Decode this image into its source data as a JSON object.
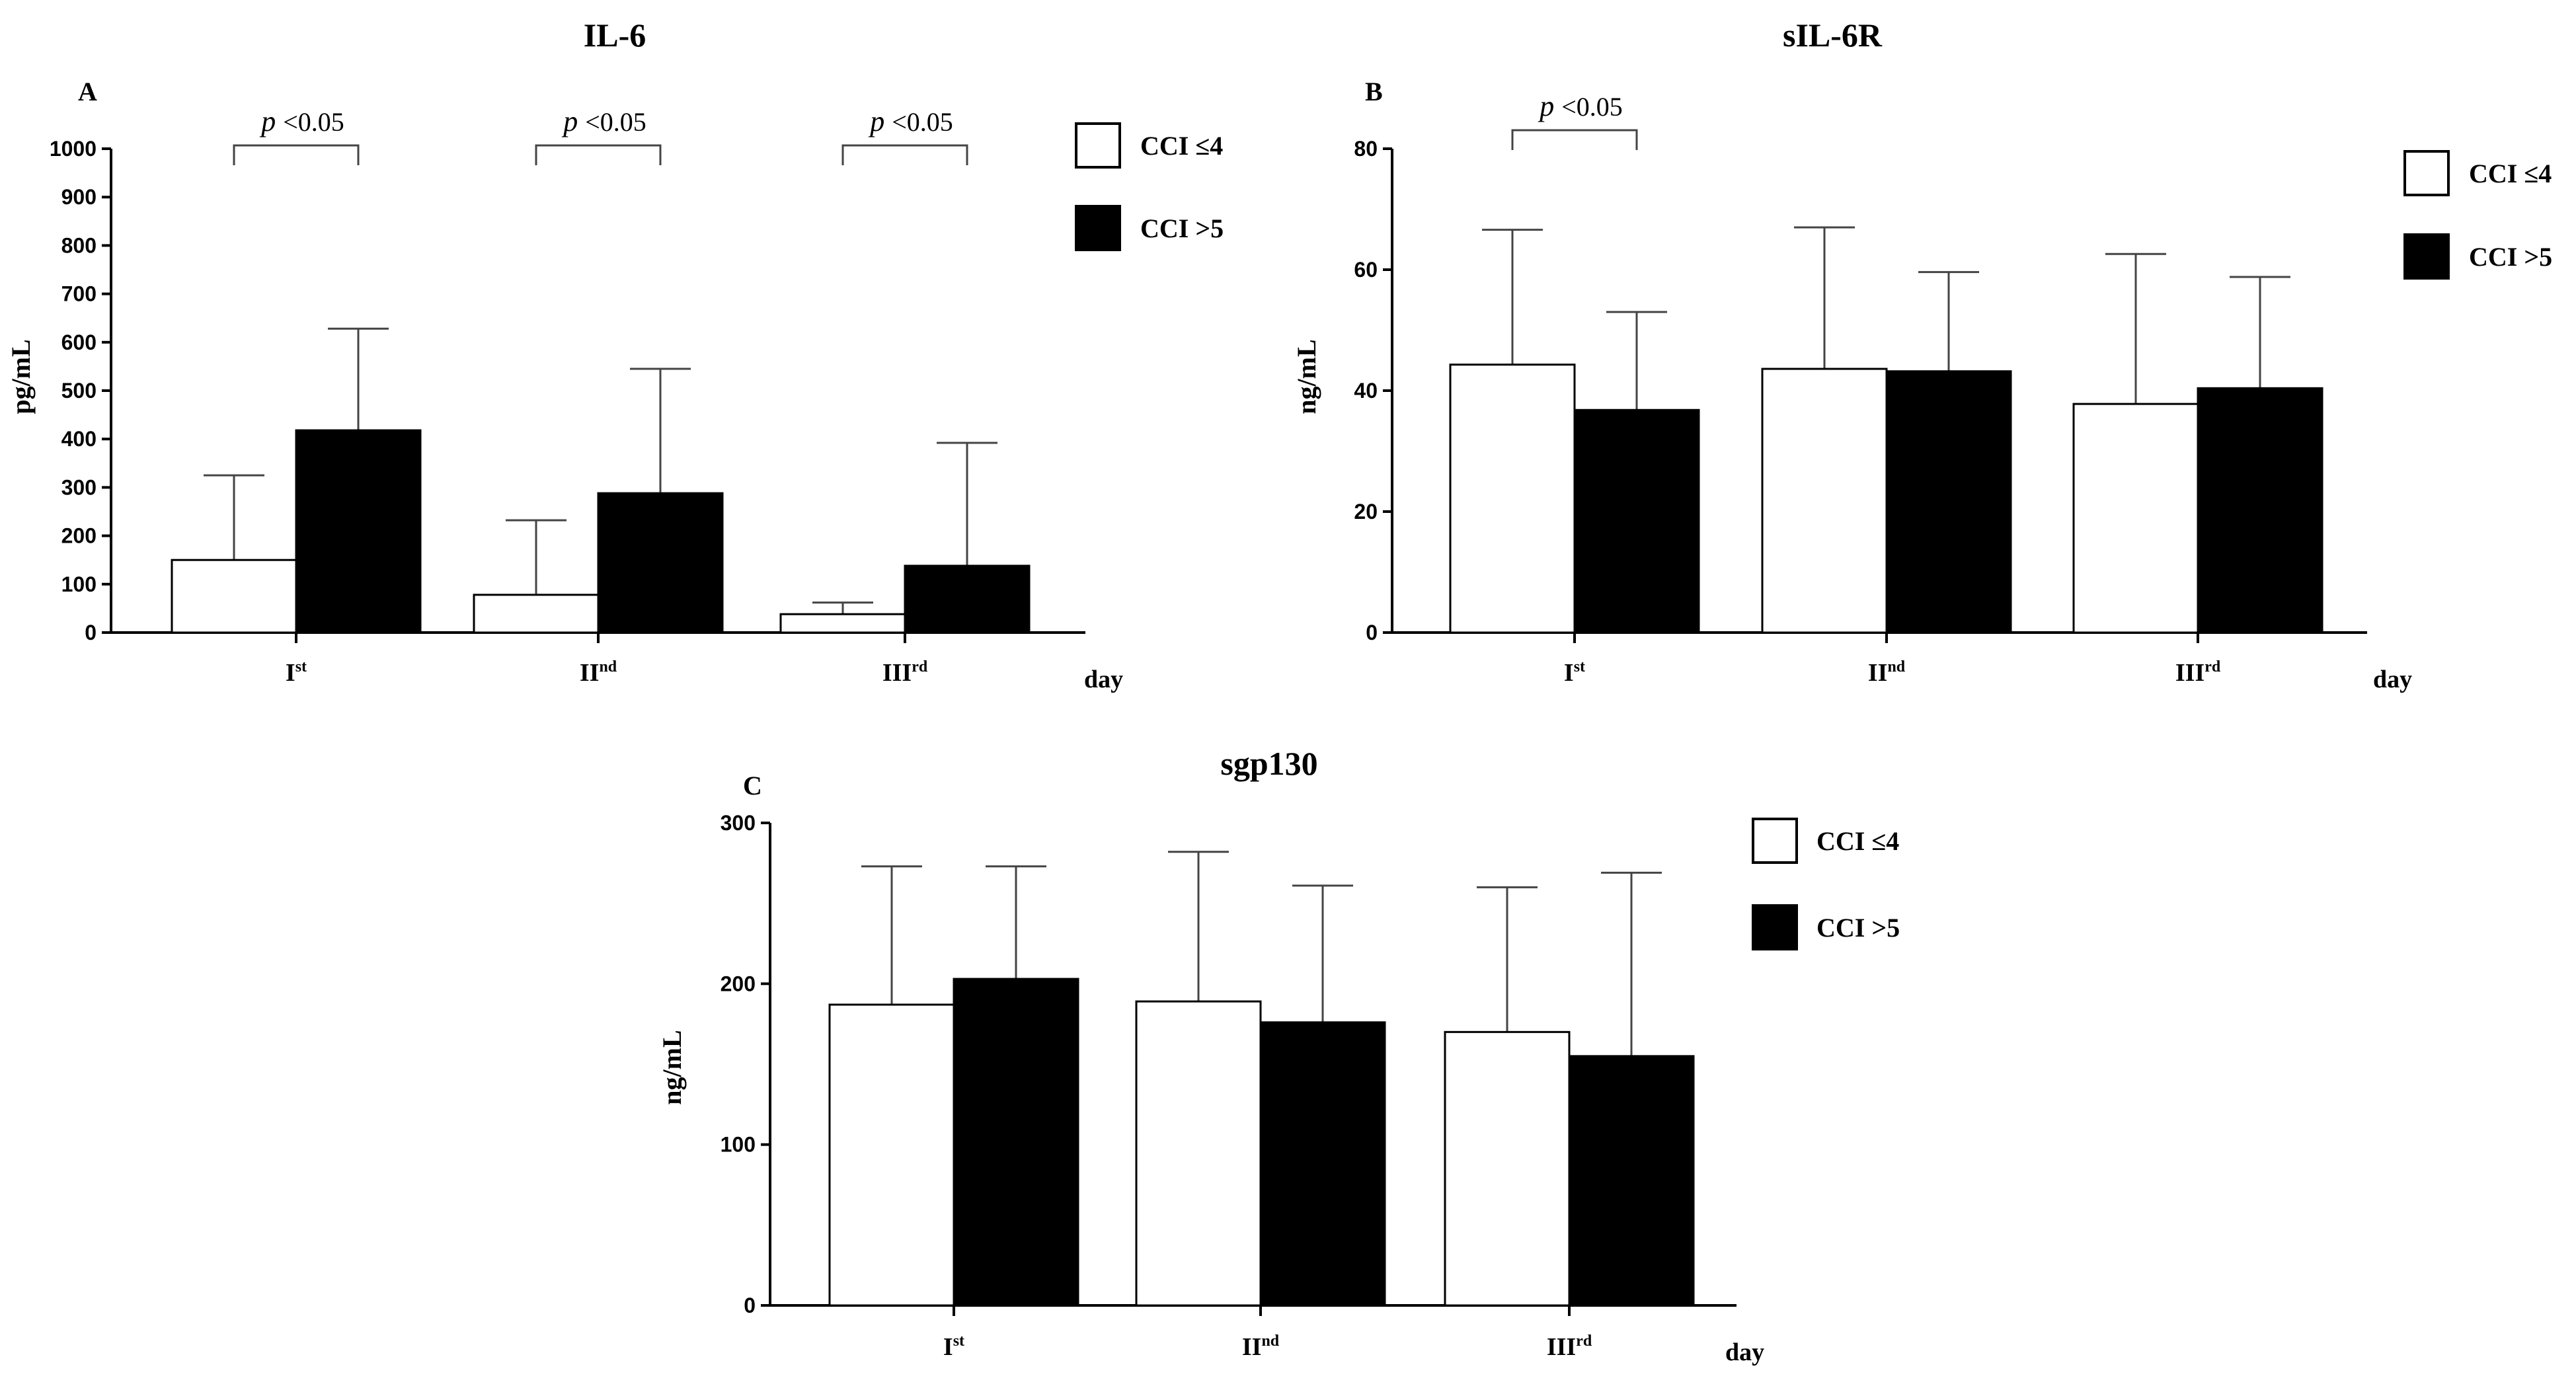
{
  "chart_data": [
    {
      "type": "bar",
      "panel": "A",
      "title": "IL-6",
      "ylabel": "pg/mL",
      "xlabel": "day",
      "ylim": [
        0,
        1000
      ],
      "yticks": [
        "0",
        "100",
        "200",
        "300",
        "400",
        "500",
        "600",
        "700",
        "800",
        "900",
        "1000"
      ],
      "categories": [
        {
          "main": "I",
          "sup": "st"
        },
        {
          "main": "II",
          "sup": "nd"
        },
        {
          "main": "III",
          "sup": "rd"
        }
      ],
      "series": [
        {
          "name": "CCI ≤4",
          "fill": "#ffffff",
          "values": [
            150,
            78,
            38
          ],
          "err": [
            325,
            232,
            62
          ]
        },
        {
          "name": "CCI >5",
          "fill": "#000000",
          "values": [
            418,
            288,
            138
          ],
          "err": [
            628,
            545,
            392
          ]
        }
      ],
      "significance": [
        {
          "category": 0,
          "p": "p",
          "text": "<0.05"
        },
        {
          "category": 1,
          "p": "p",
          "text": "<0.05"
        },
        {
          "category": 2,
          "p": "p",
          "text": "<0.05"
        }
      ]
    },
    {
      "type": "bar",
      "panel": "B",
      "title": "sIL-6R",
      "ylabel": "ng/mL",
      "xlabel": "day",
      "ylim": [
        0,
        80
      ],
      "yticks": [
        "0",
        "20",
        "40",
        "60",
        "80"
      ],
      "categories": [
        {
          "main": "I",
          "sup": "st"
        },
        {
          "main": "II",
          "sup": "nd"
        },
        {
          "main": "III",
          "sup": "rd"
        }
      ],
      "series": [
        {
          "name": "CCI ≤4",
          "fill": "#ffffff",
          "values": [
            44.3,
            43.6,
            37.8
          ],
          "err": [
            66.6,
            67.0,
            62.6
          ]
        },
        {
          "name": "CCI >5",
          "fill": "#000000",
          "values": [
            36.8,
            43.2,
            40.4
          ],
          "err": [
            53.0,
            59.6,
            58.8
          ]
        }
      ],
      "significance": [
        {
          "category": 0,
          "p": "p",
          "text": "<0.05"
        }
      ]
    },
    {
      "type": "bar",
      "panel": "C",
      "title": "sgp130",
      "ylabel": "ng/mL",
      "xlabel": "day",
      "ylim": [
        0,
        300
      ],
      "yticks": [
        "0",
        "100",
        "200",
        "300"
      ],
      "categories": [
        {
          "main": "I",
          "sup": "st"
        },
        {
          "main": "II",
          "sup": "nd"
        },
        {
          "main": "III",
          "sup": "rd"
        }
      ],
      "series": [
        {
          "name": "CCI ≤4",
          "fill": "#ffffff",
          "values": [
            187,
            189,
            170
          ],
          "err": [
            273,
            282,
            260
          ]
        },
        {
          "name": "CCI >5",
          "fill": "#000000",
          "values": [
            203,
            176,
            155
          ],
          "err": [
            273,
            261,
            269
          ]
        }
      ],
      "significance": []
    }
  ]
}
